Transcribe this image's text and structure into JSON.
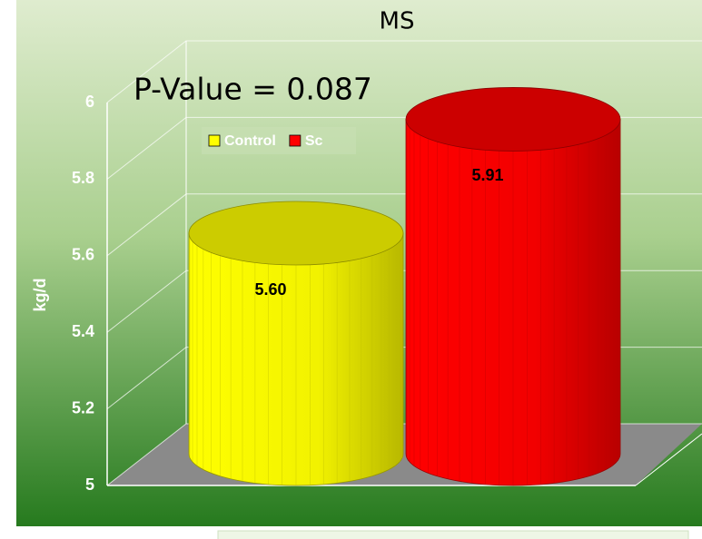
{
  "chart_data": {
    "type": "cylinder",
    "title": "MS",
    "annotation": "P-Value = 0.087",
    "y_label": "kg/d",
    "categories": [
      null
    ],
    "series": [
      {
        "name": "Control",
        "color": "#ffff00",
        "values": [
          5.6
        ],
        "value_labels": [
          "5.60"
        ]
      },
      {
        "name": "Sc",
        "color": "#ff0000",
        "values": [
          5.91
        ],
        "value_labels": [
          "5.91"
        ]
      }
    ],
    "ylim": [
      5,
      6
    ],
    "yticks": [
      5,
      5.2,
      5.4,
      5.6,
      5.8,
      6
    ],
    "grid": true,
    "legend": "top-left"
  }
}
